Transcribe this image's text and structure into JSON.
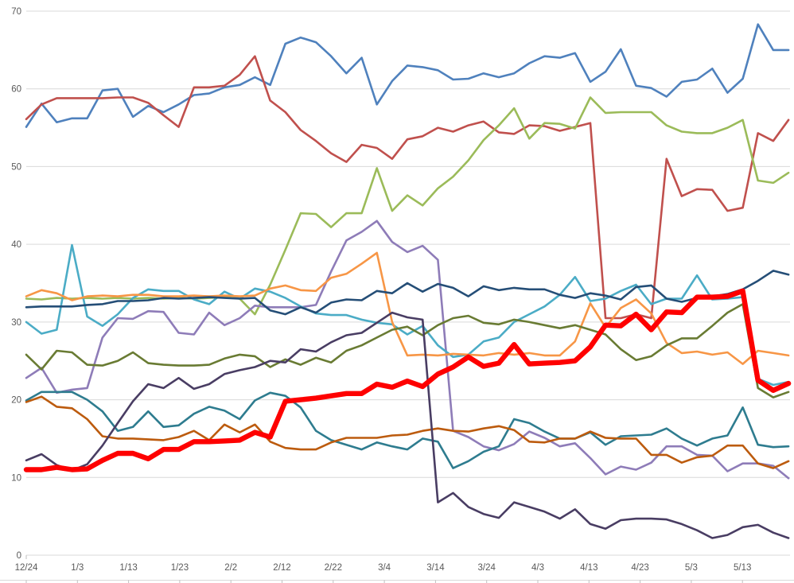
{
  "colors": {
    "background": "#FFFFFF",
    "gridline": "#D9D9D9",
    "axis_line": "#BFBFBF",
    "axis_text": "#595959"
  },
  "chart_data": {
    "type": "line",
    "title": "",
    "xlabel": "",
    "ylabel": "",
    "legend": "none",
    "grid": "horizontal",
    "x_axis": {
      "tick_labels": [
        "12/24",
        "1/3",
        "1/13",
        "1/23",
        "2/2",
        "2/12",
        "2/22",
        "3/4",
        "3/14",
        "3/24",
        "4/3",
        "4/13",
        "4/23",
        "5/3",
        "5/13"
      ],
      "tick_days": [
        0,
        10,
        20,
        30,
        40,
        50,
        60,
        70,
        80,
        90,
        100,
        110,
        120,
        130,
        140
      ],
      "span_days": 149
    },
    "y_axis": {
      "min": 0,
      "max": 70,
      "step": 10,
      "tick_labels": [
        "0",
        "10",
        "20",
        "30",
        "40",
        "50",
        "60",
        "70"
      ]
    },
    "sample_interval_days": 2.98,
    "series": [
      {
        "name": "blue",
        "color": "#4F81BD",
        "width": 2.6,
        "values": [
          55.1,
          58.1,
          55.7,
          56.2,
          56.2,
          59.8,
          60.0,
          56.4,
          57.8,
          57.0,
          58.0,
          59.2,
          59.4,
          60.2,
          60.5,
          61.5,
          60.5,
          65.8,
          66.6,
          66.0,
          64.2,
          62.0,
          64.0,
          58.0,
          61.0,
          63.0,
          62.8,
          62.4,
          61.2,
          61.3,
          62.0,
          61.5,
          62.0,
          63.3,
          64.2,
          64.0,
          64.6,
          60.9,
          62.2,
          65.1,
          60.4,
          60.1,
          59.0,
          60.9,
          61.2,
          62.6,
          59.5,
          61.3,
          68.3,
          65.0,
          65.0
        ]
      },
      {
        "name": "red",
        "color": "#C0504D",
        "width": 2.6,
        "values": [
          56.1,
          58.0,
          58.8,
          58.8,
          58.8,
          58.8,
          58.9,
          58.9,
          58.2,
          56.6,
          55.1,
          60.2,
          60.2,
          60.4,
          61.8,
          64.2,
          58.5,
          57.0,
          54.7,
          53.3,
          51.7,
          50.6,
          52.8,
          52.4,
          51.0,
          53.5,
          53.9,
          55.0,
          54.5,
          55.3,
          55.8,
          54.4,
          54.2,
          55.3,
          55.2,
          54.6,
          55.1,
          55.6,
          30.5,
          30.5,
          31.0,
          30.5,
          51.0,
          46.2,
          47.1,
          47.0,
          44.3,
          44.7,
          54.3,
          53.3,
          56.0
        ]
      },
      {
        "name": "green",
        "color": "#9BBB59",
        "width": 2.6,
        "values": [
          33.0,
          32.9,
          33.1,
          33.0,
          33.1,
          33.0,
          33.1,
          33.0,
          33.1,
          33.0,
          33.1,
          33.0,
          33.1,
          33.2,
          33.0,
          31.0,
          34.8,
          39.3,
          44.0,
          43.9,
          42.2,
          44.0,
          44.0,
          49.8,
          44.3,
          46.3,
          45.0,
          47.2,
          48.7,
          50.8,
          53.4,
          55.3,
          57.5,
          53.6,
          55.6,
          55.5,
          54.9,
          58.9,
          56.9,
          57.0,
          57.0,
          57.0,
          55.3,
          54.5,
          54.3,
          54.3,
          55.0,
          56.0,
          48.2,
          47.9,
          49.2
        ]
      },
      {
        "name": "purple",
        "color": "#8E7CB8",
        "width": 2.6,
        "values": [
          22.8,
          24.1,
          20.9,
          21.3,
          21.5,
          28.0,
          30.5,
          30.4,
          31.4,
          31.3,
          28.6,
          28.4,
          31.2,
          29.6,
          30.5,
          32.1,
          31.9,
          31.9,
          31.9,
          32.2,
          36.5,
          40.5,
          41.6,
          43.0,
          40.3,
          39.0,
          39.8,
          38.0,
          16.0,
          15.2,
          14.0,
          13.5,
          14.3,
          15.9,
          15.1,
          14.0,
          14.4,
          12.5,
          10.4,
          11.4,
          11.0,
          11.9,
          14.0,
          14.0,
          12.9,
          12.8,
          10.8,
          11.8,
          11.8,
          11.5,
          9.9
        ]
      },
      {
        "name": "cyan",
        "color": "#4BACC6",
        "width": 2.6,
        "values": [
          30.0,
          28.5,
          29.0,
          39.9,
          30.7,
          29.5,
          31.0,
          33.1,
          34.2,
          34.0,
          34.0,
          32.9,
          32.3,
          33.9,
          33.0,
          34.3,
          33.9,
          33.1,
          32.0,
          31.1,
          30.9,
          30.9,
          30.3,
          29.9,
          29.7,
          28.4,
          29.5,
          27.0,
          25.5,
          25.8,
          27.5,
          28.0,
          30.0,
          31.0,
          32.0,
          33.5,
          35.8,
          32.7,
          33.0,
          34.0,
          34.8,
          32.3,
          33.0,
          33.0,
          36.0,
          32.9,
          33.0,
          33.2,
          22.7,
          21.9,
          22.3
        ]
      },
      {
        "name": "orange",
        "color": "#F79646",
        "width": 2.6,
        "values": [
          33.3,
          34.1,
          33.7,
          32.8,
          33.3,
          33.4,
          33.3,
          33.5,
          33.5,
          33.3,
          33.3,
          33.4,
          33.3,
          33.4,
          33.3,
          33.4,
          34.3,
          34.7,
          34.1,
          34.0,
          35.7,
          36.2,
          37.5,
          38.9,
          30.0,
          25.7,
          25.8,
          25.7,
          25.9,
          25.8,
          25.7,
          26.0,
          25.8,
          26.0,
          25.7,
          25.7,
          27.5,
          32.4,
          29.3,
          31.8,
          32.9,
          31.1,
          27.3,
          26.0,
          26.2,
          25.8,
          26.1,
          24.6,
          26.3,
          26.0,
          25.7
        ]
      },
      {
        "name": "navy",
        "color": "#254E77",
        "width": 2.6,
        "values": [
          31.9,
          32.0,
          32.0,
          32.0,
          32.2,
          32.3,
          32.7,
          32.7,
          32.8,
          33.1,
          33.0,
          33.1,
          33.2,
          33.1,
          33.0,
          33.1,
          31.5,
          31.0,
          31.9,
          31.2,
          32.5,
          32.9,
          32.8,
          34.0,
          33.7,
          35.0,
          33.9,
          34.9,
          34.4,
          33.3,
          34.6,
          34.1,
          34.4,
          34.2,
          34.2,
          33.5,
          33.1,
          33.7,
          33.4,
          32.9,
          34.5,
          34.7,
          33.0,
          32.6,
          33.1,
          33.3,
          33.6,
          34.2,
          35.3,
          36.6,
          36.1
        ]
      },
      {
        "name": "olive",
        "color": "#697B33",
        "width": 2.6,
        "values": [
          25.8,
          23.9,
          26.3,
          26.1,
          24.5,
          24.4,
          25.0,
          26.1,
          24.7,
          24.5,
          24.4,
          24.4,
          24.5,
          25.3,
          25.8,
          25.6,
          24.2,
          25.2,
          24.5,
          25.4,
          24.8,
          26.3,
          27.0,
          28.0,
          29.0,
          29.4,
          28.3,
          29.6,
          30.5,
          30.8,
          29.9,
          29.7,
          30.3,
          30.0,
          29.6,
          29.2,
          29.6,
          29.0,
          28.4,
          26.5,
          25.1,
          25.6,
          27.0,
          27.9,
          27.9,
          29.5,
          31.2,
          32.3,
          21.5,
          20.3,
          21.0
        ]
      },
      {
        "name": "teal",
        "color": "#2E7C8F",
        "width": 2.6,
        "values": [
          19.9,
          21.0,
          21.0,
          21.0,
          20.0,
          18.5,
          16.0,
          16.5,
          18.5,
          16.5,
          16.7,
          18.2,
          19.1,
          18.6,
          17.5,
          19.9,
          20.9,
          20.5,
          19.0,
          16.0,
          14.8,
          14.2,
          13.6,
          14.5,
          14.0,
          13.6,
          15.0,
          14.6,
          11.2,
          12.1,
          13.3,
          14.0,
          17.5,
          17.0,
          15.9,
          15.0,
          15.0,
          15.8,
          14.2,
          15.3,
          15.4,
          15.5,
          16.3,
          15.0,
          14.1,
          15.0,
          15.4,
          19.0,
          14.2,
          13.9,
          14.0
        ]
      },
      {
        "name": "brown",
        "color": "#BC5B0E",
        "width": 2.6,
        "values": [
          19.7,
          20.4,
          19.1,
          18.9,
          17.5,
          15.3,
          15.0,
          15.0,
          14.9,
          14.8,
          15.2,
          16.0,
          14.8,
          16.8,
          15.8,
          16.8,
          14.6,
          13.8,
          13.6,
          13.6,
          14.5,
          15.1,
          15.1,
          15.1,
          15.4,
          15.5,
          16.0,
          16.3,
          16.0,
          15.9,
          16.3,
          16.6,
          16.1,
          14.6,
          14.5,
          15.0,
          15.0,
          15.9,
          15.1,
          15.0,
          15.0,
          12.9,
          12.9,
          11.9,
          12.6,
          12.8,
          14.1,
          14.1,
          11.8,
          11.2,
          12.1
        ]
      },
      {
        "name": "dark-purple",
        "color": "#493D63",
        "width": 2.6,
        "values": [
          12.2,
          13.0,
          11.6,
          10.9,
          11.7,
          14.1,
          17.0,
          19.8,
          22.0,
          21.5,
          22.8,
          21.4,
          22.0,
          23.3,
          23.8,
          24.2,
          25.0,
          24.8,
          26.5,
          26.2,
          27.4,
          28.3,
          28.6,
          29.9,
          31.2,
          30.6,
          30.3,
          6.8,
          8.0,
          6.2,
          5.3,
          4.8,
          6.8,
          6.2,
          5.6,
          4.7,
          5.9,
          4.0,
          3.4,
          4.5,
          4.7,
          4.7,
          4.6,
          4.0,
          3.2,
          2.2,
          2.6,
          3.6,
          3.9,
          2.9,
          2.2
        ]
      },
      {
        "name": "highlight-red",
        "color": "#FE0000",
        "width": 6.4,
        "values": [
          11.0,
          11.0,
          11.3,
          11.0,
          11.1,
          12.2,
          13.1,
          13.1,
          12.4,
          13.6,
          13.6,
          14.6,
          14.6,
          14.7,
          14.8,
          15.8,
          15.2,
          19.8,
          20.0,
          20.2,
          20.5,
          20.8,
          20.8,
          22.0,
          21.6,
          22.4,
          21.7,
          23.3,
          24.2,
          25.5,
          24.3,
          24.7,
          27.1,
          24.6,
          24.7,
          24.8,
          25.0,
          26.8,
          29.6,
          29.5,
          31.0,
          29.0,
          31.3,
          31.2,
          33.2,
          33.2,
          33.3,
          34.0,
          22.5,
          21.2,
          22.1
        ]
      }
    ]
  }
}
